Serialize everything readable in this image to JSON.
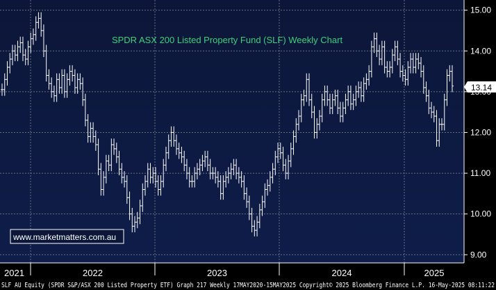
{
  "chart_data": {
    "type": "ohlc",
    "title": "SPDR ASX 200 Listed Property Fund (SLF) Weekly Chart",
    "ylim": [
      8.8,
      15.25
    ],
    "yticks": [
      "15.00",
      "14.00",
      "13.00",
      "12.00",
      "11.00",
      "10.00",
      "9.00"
    ],
    "ytick_values": [
      15,
      14,
      13,
      12,
      11,
      10,
      9
    ],
    "xticks": [
      "2021",
      "2022",
      "2023",
      "2024",
      "2025"
    ],
    "last_value": "13.14",
    "watermark": "www.marketmatters.com.au",
    "footer": "SLF AU Equity (SPDR S&P/ASX 200 Listed Property ETF) Graph 217  Weekly 17MAY2020-15MAY2025 Copyright© 2025 Bloomberg Finance L.P.  16-May-2025 08:11:22",
    "grid": true,
    "colors": {
      "background": "#0b1638",
      "bars": "#ffffff",
      "grid": "#6a6f80",
      "title": "#3cd07a",
      "watermark_border": "#ffffff",
      "last_value_bg": "#ffffff"
    },
    "series": [
      {
        "values": [
          13.05,
          13.3,
          13.6,
          13.8,
          14.0,
          13.9,
          14.1,
          14.2,
          13.9,
          13.8,
          14.1,
          14.3,
          14.4,
          14.7,
          14.8,
          14.5,
          14.0,
          13.4,
          13.2,
          13.0,
          12.9,
          13.3,
          13.1,
          13.4,
          13.0,
          13.3,
          13.5,
          13.4,
          13.1,
          13.3,
          13.2,
          12.8,
          12.3,
          11.9,
          12.1,
          11.9,
          11.7,
          11.1,
          10.6,
          10.9,
          11.3,
          11.2,
          11.7,
          11.6,
          11.4,
          11.1,
          10.9,
          10.8,
          10.4,
          10.0,
          9.7,
          9.8,
          9.9,
          10.2,
          10.6,
          10.8,
          11.1,
          10.9,
          11.0,
          10.8,
          10.6,
          10.8,
          11.2,
          11.5,
          11.8,
          12.0,
          11.8,
          11.6,
          11.5,
          11.4,
          11.2,
          11.0,
          10.8,
          10.8,
          11.0,
          11.1,
          11.2,
          11.3,
          11.4,
          11.2,
          11.0,
          11.0,
          10.9,
          10.8,
          10.5,
          10.8,
          10.9,
          11.0,
          11.1,
          11.2,
          11.0,
          10.9,
          10.8,
          10.5,
          10.3,
          10.0,
          9.7,
          9.6,
          9.8,
          10.1,
          10.3,
          10.6,
          10.7,
          10.9,
          11.1,
          11.4,
          11.6,
          11.5,
          11.2,
          11.0,
          11.3,
          11.6,
          11.9,
          12.2,
          12.4,
          12.8,
          12.9,
          13.3,
          12.8,
          12.5,
          12.0,
          12.2,
          12.4,
          12.8,
          13.0,
          12.8,
          12.6,
          12.8,
          12.9,
          12.6,
          12.4,
          12.6,
          12.8,
          13.0,
          12.7,
          12.8,
          13.0,
          13.1,
          12.9,
          13.2,
          13.3,
          13.5,
          14.1,
          14.3,
          14.0,
          13.8,
          14.1,
          13.6,
          13.5,
          13.6,
          13.9,
          14.1,
          13.8,
          13.5,
          13.4,
          13.3,
          13.6,
          13.8,
          13.6,
          13.8,
          13.7,
          13.5,
          13.1,
          12.9,
          12.6,
          12.5,
          12.4,
          11.8,
          12.2,
          12.2,
          12.8,
          13.4,
          13.5,
          13.14
        ]
      }
    ]
  }
}
